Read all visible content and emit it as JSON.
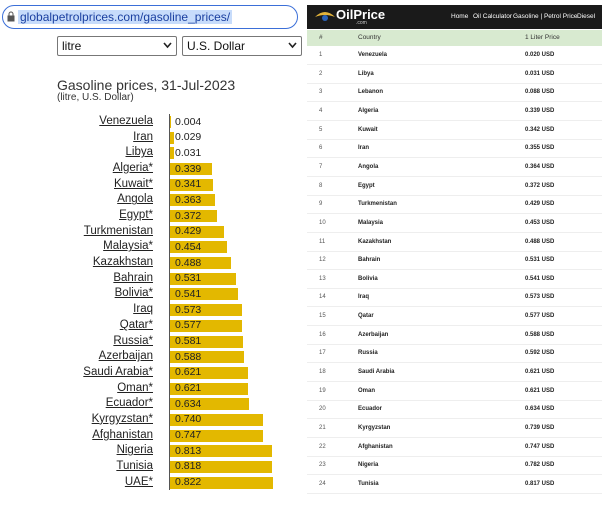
{
  "browser": {
    "url": "globalpetrolprices.com/gasoline_prices/"
  },
  "selects": [
    "litre",
    "U.S. Dollar"
  ],
  "chart_data": {
    "type": "bar",
    "orientation": "horizontal",
    "title": "Gasoline prices, 31-Jul-2023",
    "subtitle": "(litre, U.S. Dollar)",
    "categories": [
      "Venezuela",
      "Iran",
      "Libya",
      "Algeria*",
      "Kuwait*",
      "Angola",
      "Egypt*",
      "Turkmenistan",
      "Malaysia*",
      "Kazakhstan",
      "Bahrain",
      "Bolivia*",
      "Iraq",
      "Qatar*",
      "Russia*",
      "Azerbaijan",
      "Saudi Arabia*",
      "Oman*",
      "Ecuador*",
      "Kyrgyzstan*",
      "Afghanistan",
      "Nigeria",
      "Tunisia",
      "UAE*"
    ],
    "values": [
      0.004,
      0.029,
      0.031,
      0.339,
      0.341,
      0.363,
      0.372,
      0.429,
      0.454,
      0.488,
      0.531,
      0.541,
      0.573,
      0.577,
      0.581,
      0.588,
      0.621,
      0.621,
      0.634,
      0.74,
      0.747,
      0.813,
      0.818,
      0.822
    ],
    "value_labels": [
      "0.004",
      "0.029",
      "0.031",
      "0.339",
      "0.341",
      "0.363",
      "0.372",
      "0.429",
      "0.454",
      "0.488",
      "0.531",
      "0.541",
      "0.573",
      "0.577",
      "0.581",
      "0.588",
      "0.621",
      "0.621",
      "0.634",
      "0.740",
      "0.747",
      "0.813",
      "0.818",
      "0.822"
    ],
    "color": "#e3b800"
  },
  "site": {
    "logo": "OilPrice",
    "logo_sub": ".com",
    "nav": [
      "Home",
      "Oil Calculator",
      "Gasoline | Petrol Price",
      "Diesel"
    ]
  },
  "table": {
    "columns": [
      "#",
      "Country",
      "1 Liter Price"
    ],
    "rows": [
      [
        1,
        "Venezuela",
        "0.020 USD"
      ],
      [
        2,
        "Libya",
        "0.031 USD"
      ],
      [
        3,
        "Lebanon",
        "0.088 USD"
      ],
      [
        4,
        "Algeria",
        "0.339 USD"
      ],
      [
        5,
        "Kuwait",
        "0.342 USD"
      ],
      [
        6,
        "Iran",
        "0.355 USD"
      ],
      [
        7,
        "Angola",
        "0.364 USD"
      ],
      [
        8,
        "Egypt",
        "0.372 USD"
      ],
      [
        9,
        "Turkmenistan",
        "0.429 USD"
      ],
      [
        10,
        "Malaysia",
        "0.453 USD"
      ],
      [
        11,
        "Kazakhstan",
        "0.488 USD"
      ],
      [
        12,
        "Bahrain",
        "0.531 USD"
      ],
      [
        13,
        "Bolivia",
        "0.541 USD"
      ],
      [
        14,
        "Iraq",
        "0.573 USD"
      ],
      [
        15,
        "Qatar",
        "0.577 USD"
      ],
      [
        16,
        "Azerbaijan",
        "0.588 USD"
      ],
      [
        17,
        "Russia",
        "0.592 USD"
      ],
      [
        18,
        "Saudi Arabia",
        "0.621 USD"
      ],
      [
        19,
        "Oman",
        "0.621 USD"
      ],
      [
        20,
        "Ecuador",
        "0.634 USD"
      ],
      [
        21,
        "Kyrgyzstan",
        "0.739 USD"
      ],
      [
        22,
        "Afghanistan",
        "0.747 USD"
      ],
      [
        23,
        "Nigeria",
        "0.782 USD"
      ],
      [
        24,
        "Tunisia",
        "0.817 USD"
      ]
    ]
  }
}
